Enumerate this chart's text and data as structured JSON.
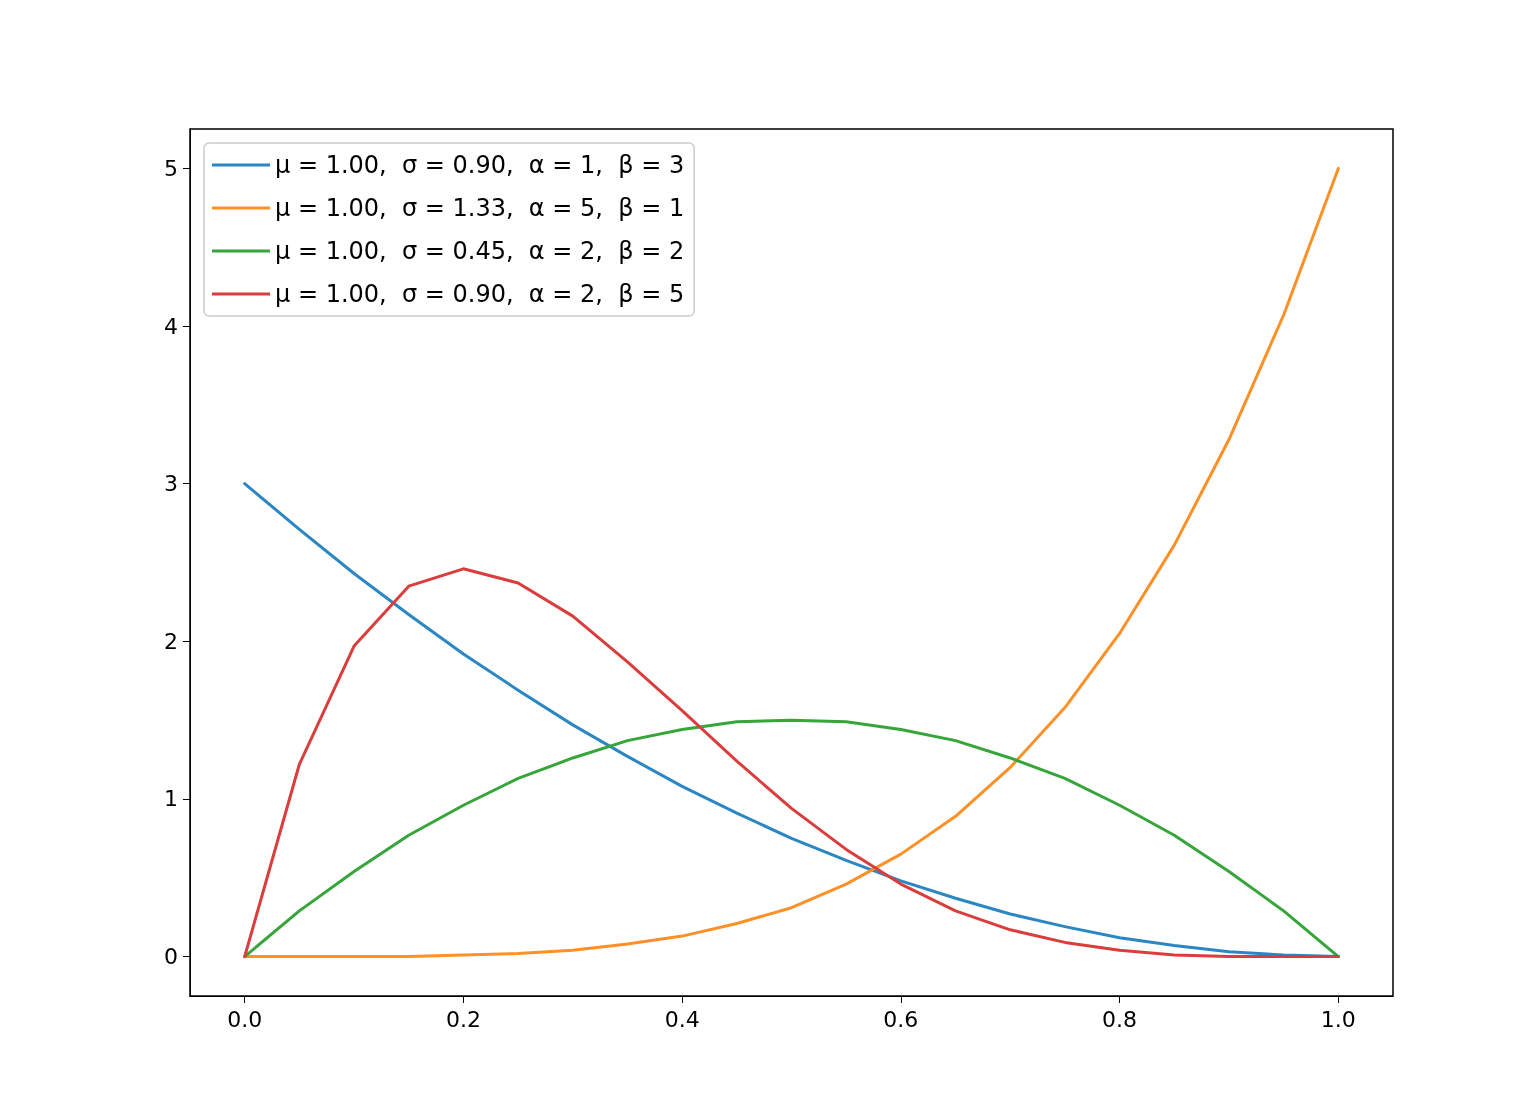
{
  "chart_data": {
    "type": "line",
    "x": [
      0,
      0.05,
      0.1,
      0.15,
      0.2,
      0.25,
      0.3,
      0.35,
      0.4,
      0.45,
      0.5,
      0.55,
      0.6,
      0.65,
      0.7,
      0.75,
      0.8,
      0.85,
      0.9,
      0.95,
      1
    ],
    "series": [
      {
        "name": "μ = 1.00,  σ = 0.90,  α = 1,  β = 3",
        "color": "#2b87c3",
        "values": [
          3,
          2.71,
          2.43,
          2.17,
          1.92,
          1.69,
          1.47,
          1.27,
          1.08,
          0.91,
          0.75,
          0.61,
          0.48,
          0.37,
          0.27,
          0.19,
          0.12,
          0.07,
          0.03,
          0.01,
          0
        ]
      },
      {
        "name": "μ = 1.00,  σ = 1.33,  α = 5,  β = 1",
        "color": "#ff9026",
        "values": [
          0,
          0,
          0,
          0,
          0.01,
          0.02,
          0.04,
          0.08,
          0.13,
          0.21,
          0.31,
          0.46,
          0.65,
          0.89,
          1.2,
          1.58,
          2.05,
          2.61,
          3.28,
          4.07,
          5
        ]
      },
      {
        "name": "μ = 1.00,  σ = 0.45,  α = 2,  β = 2",
        "color": "#36a53a",
        "values": [
          0,
          0.29,
          0.54,
          0.77,
          0.96,
          1.13,
          1.26,
          1.37,
          1.44,
          1.49,
          1.5,
          1.49,
          1.44,
          1.37,
          1.26,
          1.13,
          0.96,
          0.77,
          0.54,
          0.29,
          0
        ]
      },
      {
        "name": "μ = 1.00,  σ = 0.90,  α = 2,  β = 5",
        "color": "#db3d3d",
        "values": [
          0,
          1.22,
          1.97,
          2.35,
          2.46,
          2.37,
          2.16,
          1.87,
          1.56,
          1.24,
          0.94,
          0.68,
          0.46,
          0.29,
          0.17,
          0.09,
          0.04,
          0.01,
          0,
          0,
          0
        ]
      }
    ],
    "xlim": [
      -0.05,
      1.05
    ],
    "xticks": [
      {
        "value": 0,
        "label": "0.0"
      },
      {
        "value": 0.2,
        "label": "0.2"
      },
      {
        "value": 0.4,
        "label": "0.4"
      },
      {
        "value": 0.6,
        "label": "0.6"
      },
      {
        "value": 0.8,
        "label": "0.8"
      },
      {
        "value": 1,
        "label": "1.0"
      }
    ],
    "ylim": [
      -0.25,
      5.25
    ],
    "yticks": [
      0,
      1,
      2,
      3,
      4,
      5
    ],
    "grid": false,
    "legend": "top left",
    "marker": "none",
    "line_style": "solid"
  }
}
